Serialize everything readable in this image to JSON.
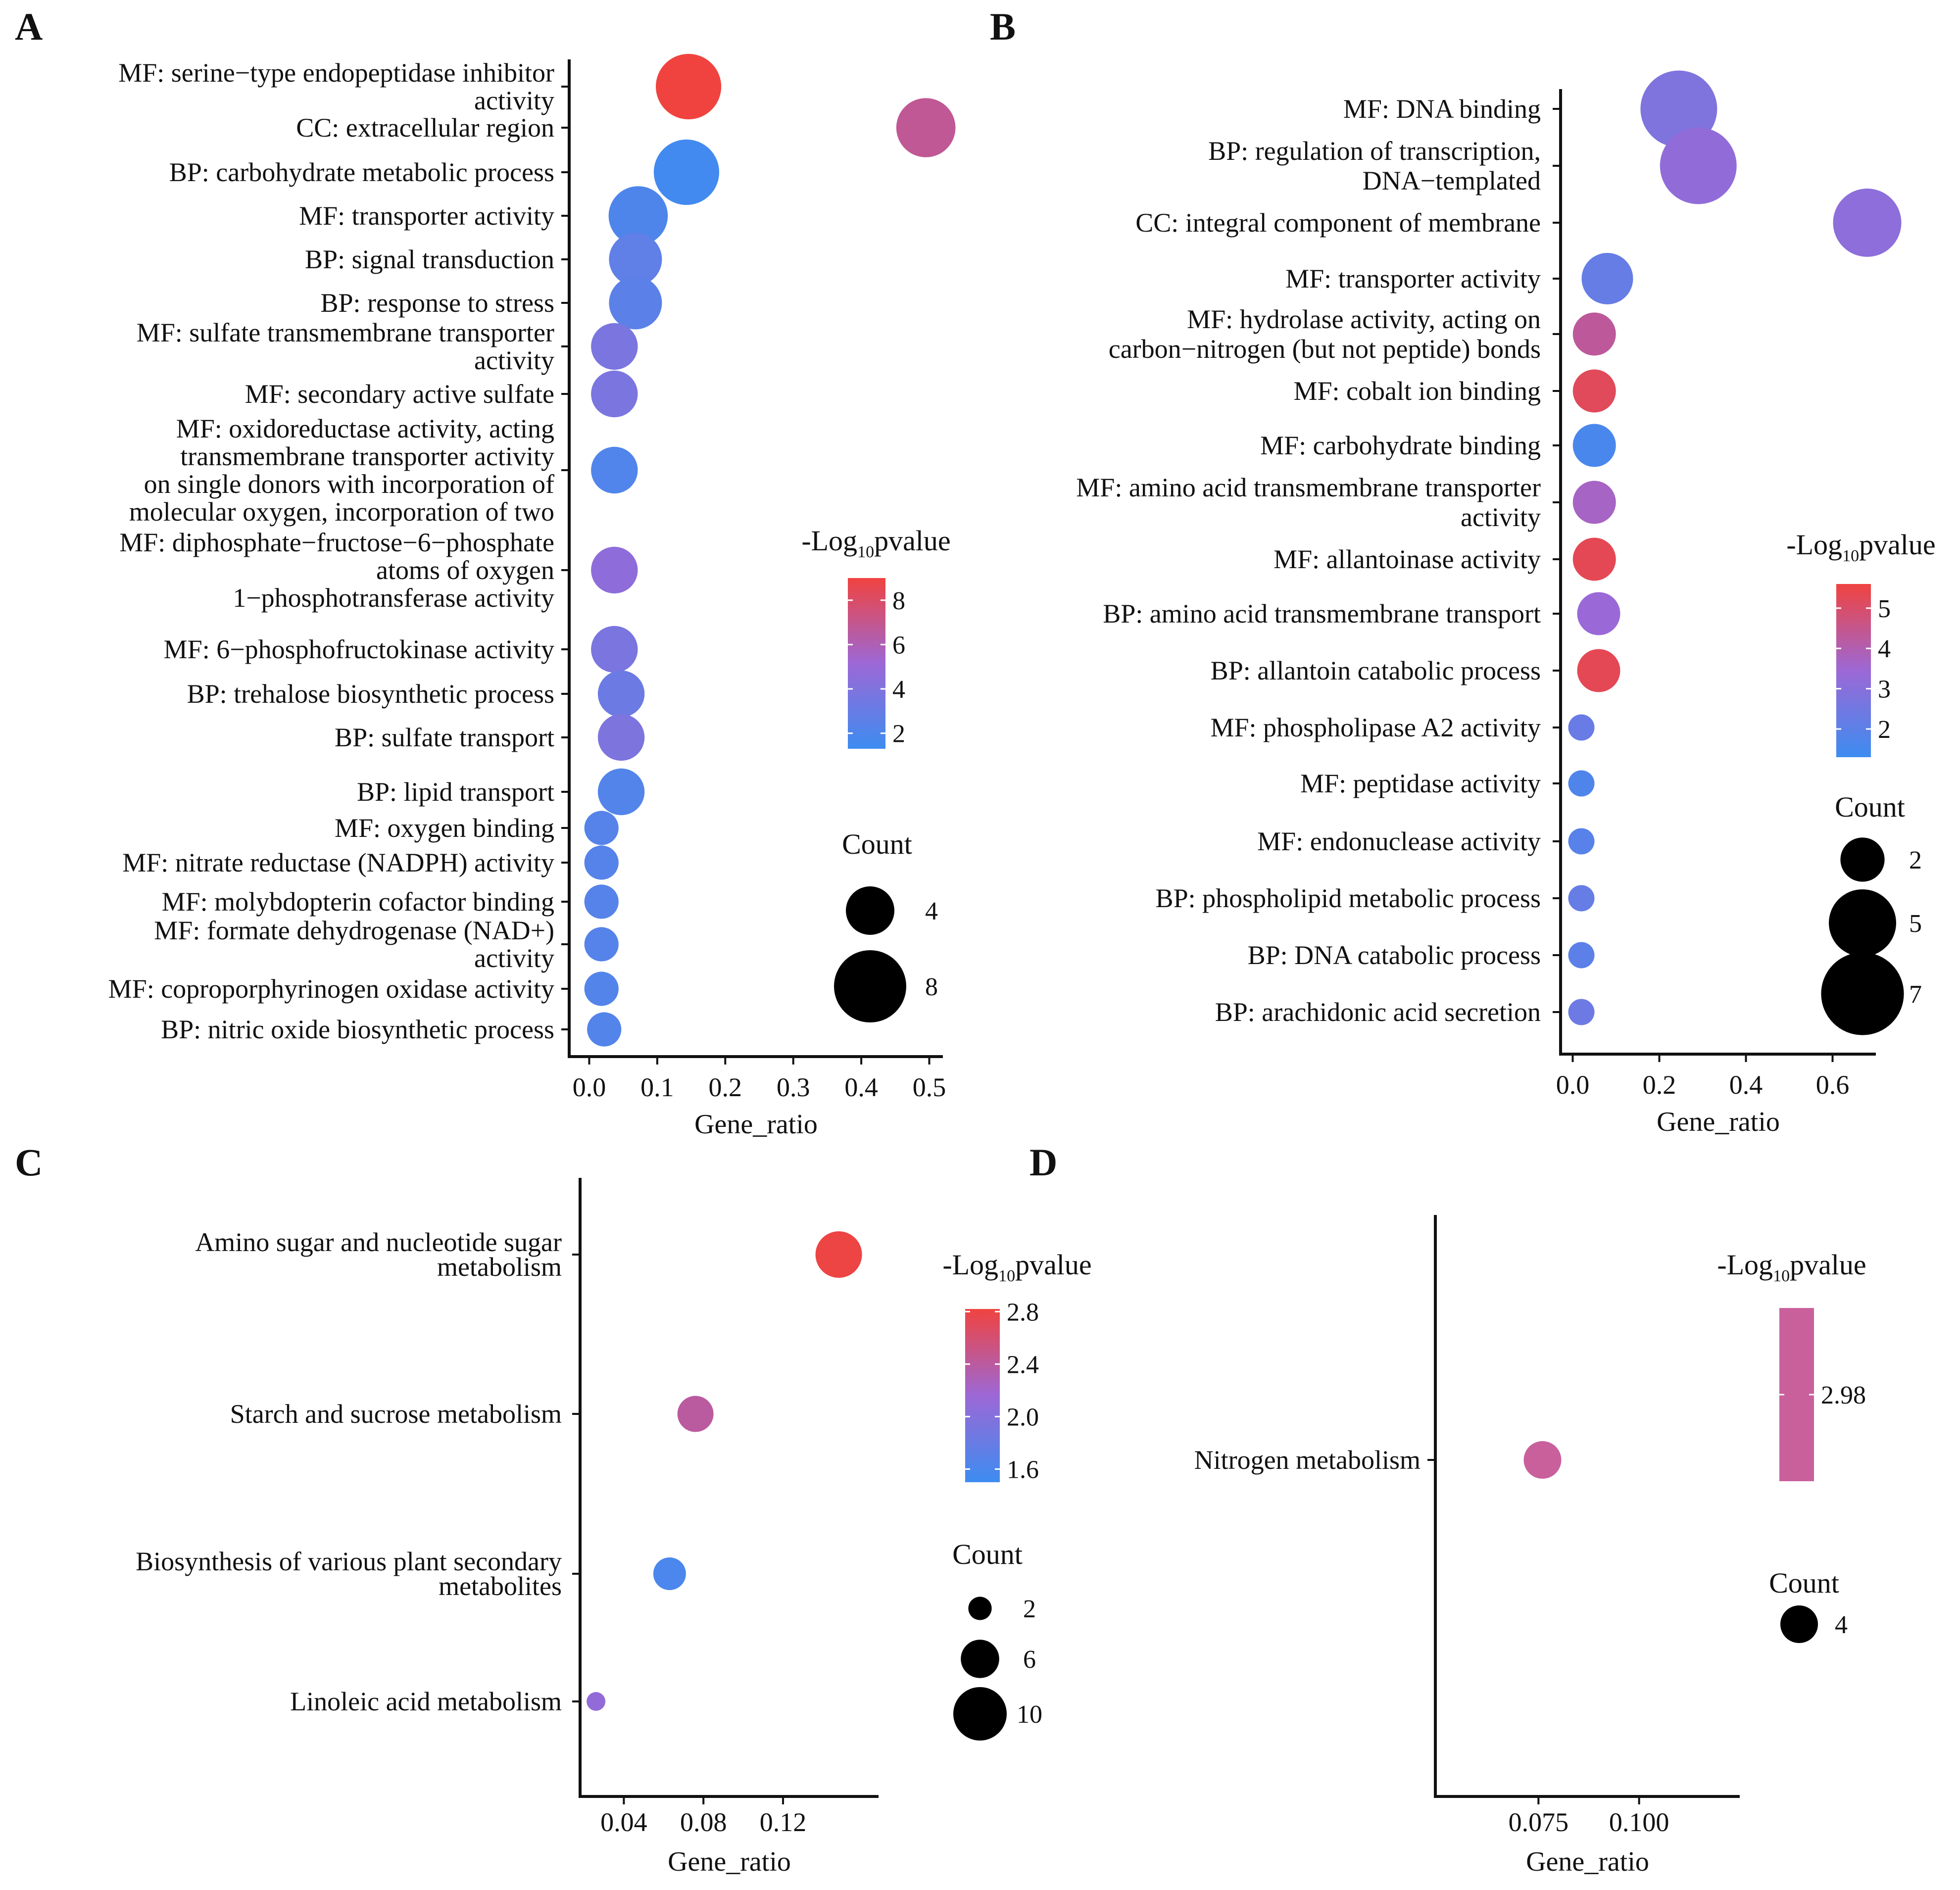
{
  "chart_data": [
    {
      "panel": "A",
      "type": "scatter",
      "xlabel": "Gene_ratio",
      "xlim": [
        -0.02,
        0.52
      ],
      "xticks": [
        "0.0",
        "0.1",
        "0.2",
        "0.3",
        "0.4",
        "0.5"
      ],
      "xtick_values": [
        0.0,
        0.1,
        0.2,
        0.3,
        0.4,
        0.5
      ],
      "color_legend": {
        "title_prefix": "-Log",
        "title_sub": "10",
        "title_suffix": "pvalue",
        "ticks": [
          "8",
          "6",
          "4",
          "2"
        ],
        "tick_values": [
          8,
          6,
          4,
          2
        ],
        "range": [
          1.3,
          9
        ]
      },
      "size_legend": {
        "title": "Count",
        "labels": [
          "4",
          "8"
        ],
        "values": [
          4,
          8
        ]
      },
      "points": [
        {
          "lines": [
            "MF: serine−type endopeptidase inhibitor",
            "activity"
          ],
          "gene_ratio": 0.146,
          "log10p": 9.0,
          "count": 7
        },
        {
          "lines": [
            "CC: extracellular region"
          ],
          "gene_ratio": 0.495,
          "log10p": 6.8,
          "count": 6
        },
        {
          "lines": [
            "BP: carbohydrate metabolic process"
          ],
          "gene_ratio": 0.143,
          "log10p": 1.5,
          "count": 7
        },
        {
          "lines": [
            "MF: transporter activity"
          ],
          "gene_ratio": 0.072,
          "log10p": 2.0,
          "count": 6
        },
        {
          "lines": [
            "BP: signal transduction"
          ],
          "gene_ratio": 0.068,
          "log10p": 2.7,
          "count": 5
        },
        {
          "lines": [
            "BP: response to stress"
          ],
          "gene_ratio": 0.068,
          "log10p": 2.5,
          "count": 5
        },
        {
          "lines": [
            "MF: sulfate transmembrane transporter",
            "activity"
          ],
          "gene_ratio": 0.037,
          "log10p": 3.8,
          "count": 4
        },
        {
          "lines": [
            "MF: secondary active sulfate"
          ],
          "gene_ratio": 0.037,
          "log10p": 3.8,
          "count": 4
        },
        {
          "lines": [
            "MF: oxidoreductase activity, acting",
            "transmembrane transporter activity",
            "on single donors with incorporation of",
            "molecular oxygen, incorporation of two"
          ],
          "gene_ratio": 0.037,
          "log10p": 2.1,
          "count": 4
        },
        {
          "lines": [
            "MF: diphosphate−fructose−6−phosphate",
            "atoms of oxygen",
            "1−phosphotransferase activity"
          ],
          "gene_ratio": 0.037,
          "log10p": 4.6,
          "count": 4
        },
        {
          "lines": [
            "MF: 6−phosphofructokinase activity"
          ],
          "gene_ratio": 0.037,
          "log10p": 3.8,
          "count": 4
        },
        {
          "lines": [
            "BP: trehalose biosynthetic process"
          ],
          "gene_ratio": 0.047,
          "log10p": 3.2,
          "count": 4
        },
        {
          "lines": [
            "BP: sulfate transport"
          ],
          "gene_ratio": 0.047,
          "log10p": 3.9,
          "count": 4
        },
        {
          "lines": [
            "BP: lipid transport"
          ],
          "gene_ratio": 0.047,
          "log10p": 2.2,
          "count": 4
        },
        {
          "lines": [
            "MF: oxygen binding"
          ],
          "gene_ratio": 0.018,
          "log10p": 2.3,
          "count": 2
        },
        {
          "lines": [
            "MF: nitrate reductase (NADPH) activity"
          ],
          "gene_ratio": 0.018,
          "log10p": 2.3,
          "count": 2
        },
        {
          "lines": [
            "MF: molybdopterin cofactor binding"
          ],
          "gene_ratio": 0.018,
          "log10p": 2.3,
          "count": 2
        },
        {
          "lines": [
            "MF: formate dehydrogenase (NAD+)",
            "activity"
          ],
          "gene_ratio": 0.018,
          "log10p": 2.3,
          "count": 2
        },
        {
          "lines": [
            "MF: coproporphyrinogen oxidase activity"
          ],
          "gene_ratio": 0.018,
          "log10p": 2.2,
          "count": 2
        },
        {
          "lines": [
            "BP: nitric oxide biosynthetic process"
          ],
          "gene_ratio": 0.022,
          "log10p": 2.2,
          "count": 2
        }
      ]
    },
    {
      "panel": "B",
      "type": "scatter",
      "xlabel": "Gene_ratio",
      "xlim": [
        -0.02,
        0.7
      ],
      "xticks": [
        "0.0",
        "0.2",
        "0.4",
        "0.6"
      ],
      "xtick_values": [
        0.0,
        0.2,
        0.4,
        0.6
      ],
      "color_legend": {
        "title_prefix": "-Log",
        "title_sub": "10",
        "title_suffix": "pvalue",
        "ticks": [
          "5",
          "4",
          "3",
          "2"
        ],
        "tick_values": [
          5,
          4,
          3,
          2
        ],
        "range": [
          1.3,
          5.6
        ]
      },
      "size_legend": {
        "title": "Count",
        "labels": [
          "2",
          "5",
          "7"
        ],
        "values": [
          2,
          5,
          7
        ]
      },
      "points": [
        {
          "lines": [
            "MF: DNA binding"
          ],
          "gene_ratio": 0.245,
          "log10p": 2.8,
          "count": 7
        },
        {
          "lines": [
            "BP: regulation of transcription,",
            "DNA−templated"
          ],
          "gene_ratio": 0.29,
          "log10p": 3.2,
          "count": 7
        },
        {
          "lines": [
            "CC: integral component of membrane"
          ],
          "gene_ratio": 0.68,
          "log10p": 3.1,
          "count": 6
        },
        {
          "lines": [
            "MF: transporter activity"
          ],
          "gene_ratio": 0.08,
          "log10p": 2.2,
          "count": 4
        },
        {
          "lines": [
            "MF: hydrolase activity, acting on",
            "carbon−nitrogen (but not peptide) bonds"
          ],
          "gene_ratio": 0.05,
          "log10p": 4.3,
          "count": 3
        },
        {
          "lines": [
            "MF: cobalt ion binding"
          ],
          "gene_ratio": 0.05,
          "log10p": 5.2,
          "count": 3
        },
        {
          "lines": [
            "MF: carbohydrate binding"
          ],
          "gene_ratio": 0.05,
          "log10p": 1.6,
          "count": 3
        },
        {
          "lines": [
            "MF: amino acid transmembrane transporter",
            "activity"
          ],
          "gene_ratio": 0.05,
          "log10p": 3.7,
          "count": 3
        },
        {
          "lines": [
            "MF: allantoinase activity"
          ],
          "gene_ratio": 0.05,
          "log10p": 5.3,
          "count": 3
        },
        {
          "lines": [
            "BP: amino acid transmembrane transport"
          ],
          "gene_ratio": 0.06,
          "log10p": 3.4,
          "count": 3
        },
        {
          "lines": [
            "BP: allantoin catabolic process"
          ],
          "gene_ratio": 0.06,
          "log10p": 5.3,
          "count": 3
        },
        {
          "lines": [
            "MF: phospholipase A2 activity"
          ],
          "gene_ratio": 0.02,
          "log10p": 2.3,
          "count": 1
        },
        {
          "lines": [
            "MF: peptidase activity"
          ],
          "gene_ratio": 0.02,
          "log10p": 1.7,
          "count": 1
        },
        {
          "lines": [
            "MF: endonuclease activity"
          ],
          "gene_ratio": 0.02,
          "log10p": 1.9,
          "count": 1
        },
        {
          "lines": [
            "BP: phospholipid metabolic process"
          ],
          "gene_ratio": 0.02,
          "log10p": 2.2,
          "count": 1
        },
        {
          "lines": [
            "BP: DNA catabolic process"
          ],
          "gene_ratio": 0.02,
          "log10p": 2.0,
          "count": 1
        },
        {
          "lines": [
            "BP: arachidonic acid secretion"
          ],
          "gene_ratio": 0.02,
          "log10p": 2.4,
          "count": 1
        }
      ]
    },
    {
      "panel": "C",
      "type": "scatter",
      "xlabel": "Gene_ratio",
      "xlim": [
        0.02,
        0.168
      ],
      "xticks": [
        "0.04",
        "0.08",
        "0.12"
      ],
      "xtick_values": [
        0.04,
        0.08,
        0.12
      ],
      "color_legend": {
        "title_prefix": "-Log",
        "title_sub": "10",
        "title_suffix": "pvalue",
        "ticks": [
          "2.8",
          "2.4",
          "2.0",
          "1.6"
        ],
        "tick_values": [
          2.8,
          2.4,
          2.0,
          1.6
        ],
        "range": [
          1.5,
          2.82
        ]
      },
      "size_legend": {
        "title": "Count",
        "labels": [
          "2",
          "6",
          "10"
        ],
        "values": [
          2,
          6,
          10
        ]
      },
      "points": [
        {
          "lines": [
            "Amino sugar and nucleotide sugar",
            "metabolism"
          ],
          "gene_ratio": 0.148,
          "log10p": 2.8,
          "count": 10
        },
        {
          "lines": [
            "Starch and sucrose metabolism"
          ],
          "gene_ratio": 0.076,
          "log10p": 2.4,
          "count": 7
        },
        {
          "lines": [
            "Biosynthesis of various plant secondary",
            "metabolites"
          ],
          "gene_ratio": 0.063,
          "log10p": 1.6,
          "count": 6
        },
        {
          "lines": [
            "Linoleic acid metabolism"
          ],
          "gene_ratio": 0.026,
          "log10p": 2.1,
          "count": 2
        }
      ]
    },
    {
      "panel": "D",
      "type": "scatter",
      "xlabel": "Gene_ratio",
      "xlim": [
        0.05,
        0.125
      ],
      "xticks": [
        "0.075",
        "0.100"
      ],
      "xtick_values": [
        0.075,
        0.1
      ],
      "color_legend": {
        "title_prefix": "-Log",
        "title_sub": "10",
        "title_suffix": "pvalue",
        "ticks": [
          "2.98"
        ],
        "tick_values": [
          2.98
        ],
        "range": [
          2.9,
          3.06
        ],
        "single_color": "#c9609c"
      },
      "size_legend": {
        "title": "Count",
        "labels": [
          "4"
        ],
        "values": [
          4
        ]
      },
      "points": [
        {
          "lines": [
            "Nitrogen metabolism"
          ],
          "gene_ratio": 0.076,
          "log10p": 2.98,
          "count": 4
        }
      ]
    }
  ]
}
